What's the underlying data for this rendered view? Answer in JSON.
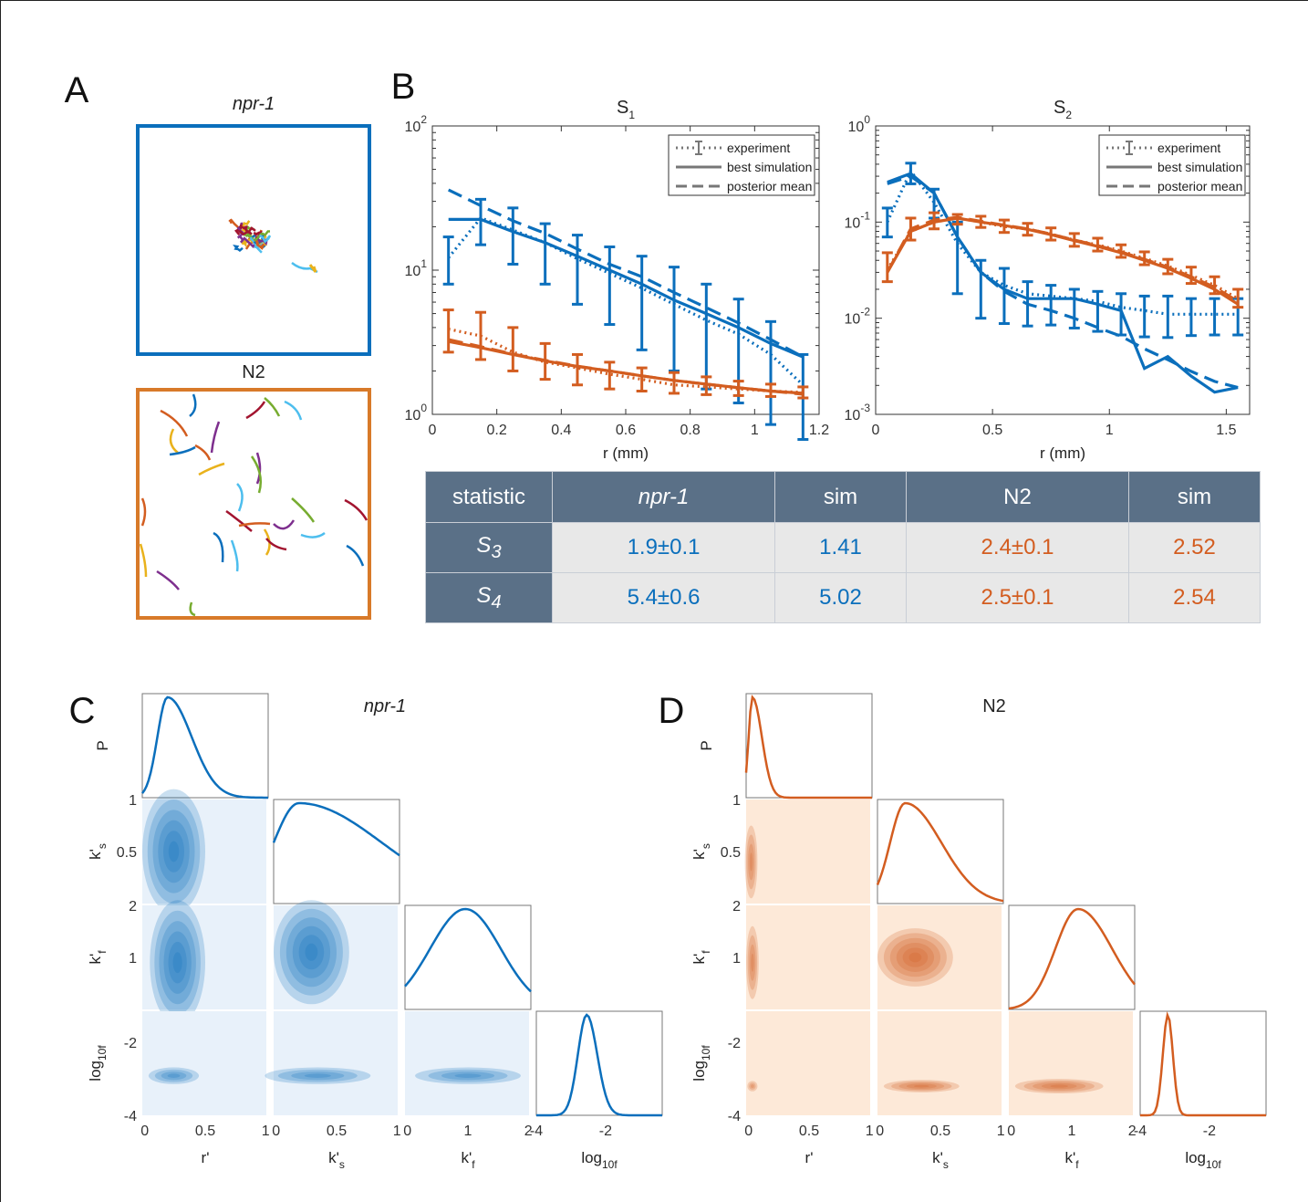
{
  "panels": {
    "A": "A",
    "B": "B",
    "C": "C",
    "D": "D"
  },
  "panel_a": {
    "top_label": "npr-1",
    "bottom_label": "N2"
  },
  "colors": {
    "blue": "#0b6fbc",
    "orange": "#d35d20",
    "light_blue": "#5ab4e5",
    "header": "#5a7087"
  },
  "legend": {
    "experiment": "experiment",
    "best": "best simulation",
    "posterior": "posterior mean"
  },
  "table": {
    "headers": [
      "statistic",
      "npr-1",
      "sim",
      "N2",
      "sim"
    ],
    "rows": [
      {
        "stat": "S",
        "sub": "3",
        "values": [
          "1.9±0.1",
          "1.41",
          "2.4±0.1",
          "2.52"
        ]
      },
      {
        "stat": "S",
        "sub": "4",
        "values": [
          "5.4±0.6",
          "5.02",
          "2.5±0.1",
          "2.54"
        ]
      }
    ]
  },
  "corner_titles": {
    "C": "npr-1",
    "D": "N2"
  },
  "corner_axes": {
    "x_labels": [
      "r'",
      "k's",
      "k'f",
      "log10ft"
    ],
    "y_labels": [
      "P",
      "k's",
      "k'f",
      "log10ft"
    ],
    "ticks_r": [
      "0",
      "0.5",
      "1"
    ],
    "ticks_ks": [
      "0",
      "0.5",
      "1"
    ],
    "ticks_kf": [
      "0",
      "1",
      "2"
    ],
    "ticks_ft": [
      "-4",
      "-2"
    ]
  },
  "chart_data": [
    {
      "type": "line",
      "title": "S1",
      "xlabel": "r (mm)",
      "ylabel": "",
      "yscale": "log",
      "xlim": [
        0,
        1.2
      ],
      "ylim": [
        1,
        100
      ],
      "xticks": [
        "0",
        "0.2",
        "0.4",
        "0.6",
        "0.8",
        "1",
        "1.2"
      ],
      "yticks": [
        "10^0",
        "10^1",
        "10^2"
      ],
      "x": [
        0.05,
        0.15,
        0.25,
        0.35,
        0.45,
        0.55,
        0.65,
        0.75,
        0.85,
        0.95,
        1.05,
        1.15
      ],
      "series": [
        {
          "color": "blue",
          "style": "experiment",
          "values": [
            12.2,
            23,
            19,
            15.5,
            12,
            9.5,
            7.5,
            5.8,
            4.5,
            3.6,
            2.6,
            1.6
          ],
          "err_lo": [
            8,
            15,
            11,
            8,
            5.8,
            4.2,
            2.8,
            2,
            1.5,
            1.2,
            0.85,
            0.67
          ],
          "err_hi": [
            17,
            31,
            27,
            21,
            17.5,
            14.5,
            12.5,
            10.5,
            8,
            6.3,
            4.4,
            2.6
          ]
        },
        {
          "color": "blue",
          "style": "best",
          "values": [
            22.5,
            22.5,
            18.5,
            15.5,
            12.5,
            10,
            8,
            6.2,
            5,
            4,
            3.1,
            2.5
          ]
        },
        {
          "color": "blue",
          "style": "posterior",
          "values": [
            36,
            28,
            22,
            18,
            14,
            11,
            9,
            7,
            5.5,
            4.3,
            3.3,
            2.5
          ]
        },
        {
          "color": "orange",
          "style": "experiment",
          "values": [
            3.9,
            3.5,
            2.7,
            2.3,
            2.1,
            1.9,
            1.75,
            1.6,
            1.55,
            1.5,
            1.45,
            1.42
          ],
          "err_lo": [
            2.7,
            2.4,
            2.0,
            1.75,
            1.6,
            1.5,
            1.45,
            1.4,
            1.37,
            1.35,
            1.33,
            1.3
          ],
          "err_hi": [
            5.3,
            5.1,
            4.0,
            3.1,
            2.6,
            2.3,
            2.1,
            1.95,
            1.82,
            1.7,
            1.62,
            1.55
          ]
        },
        {
          "color": "orange",
          "style": "best",
          "values": [
            3.2,
            2.9,
            2.6,
            2.35,
            2.15,
            2.0,
            1.85,
            1.72,
            1.62,
            1.53,
            1.45,
            1.4
          ]
        },
        {
          "color": "orange",
          "style": "posterior",
          "values": [
            3.3,
            2.95,
            2.62,
            2.37,
            2.16,
            2.0,
            1.85,
            1.72,
            1.62,
            1.53,
            1.45,
            1.38
          ]
        }
      ]
    },
    {
      "type": "line",
      "title": "S2",
      "xlabel": "r (mm)",
      "ylabel": "",
      "yscale": "log",
      "xlim": [
        0,
        1.6
      ],
      "ylim": [
        0.001,
        1
      ],
      "xticks": [
        "0",
        "0.5",
        "1",
        "1.5"
      ],
      "yticks": [
        "10^-3",
        "10^-2",
        "10^-1",
        "10^0"
      ],
      "x": [
        0.05,
        0.15,
        0.25,
        0.35,
        0.45,
        0.55,
        0.65,
        0.75,
        0.85,
        0.95,
        1.05,
        1.15,
        1.25,
        1.35,
        1.45,
        1.55
      ],
      "series": [
        {
          "color": "blue",
          "style": "experiment",
          "values": [
            0.1,
            0.34,
            0.16,
            0.06,
            0.03,
            0.022,
            0.018,
            0.017,
            0.016,
            0.015,
            0.013,
            0.012,
            0.011,
            0.011,
            0.011,
            0.011
          ],
          "err_lo": [
            0.07,
            0.25,
            0.11,
            0.018,
            0.01,
            0.0088,
            0.0083,
            0.0085,
            0.0079,
            0.0073,
            0.0067,
            0.0064,
            0.0063,
            0.0066,
            0.0067,
            0.0067
          ],
          "err_hi": [
            0.14,
            0.41,
            0.22,
            0.1,
            0.04,
            0.033,
            0.024,
            0.022,
            0.02,
            0.019,
            0.018,
            0.017,
            0.017,
            0.016,
            0.016,
            0.016
          ]
        },
        {
          "color": "blue",
          "style": "best",
          "values": [
            0.26,
            0.32,
            0.2,
            0.07,
            0.03,
            0.02,
            0.016,
            0.016,
            0.016,
            0.014,
            0.012,
            0.003,
            0.004,
            0.0025,
            0.0017,
            0.0019
          ]
        },
        {
          "color": "blue",
          "style": "posterior",
          "values": [
            0.25,
            0.3,
            0.2,
            0.07,
            0.03,
            0.019,
            0.014,
            0.012,
            0.01,
            0.008,
            0.0065,
            0.0048,
            0.0037,
            0.0028,
            0.0022,
            0.0019
          ]
        },
        {
          "color": "orange",
          "style": "experiment",
          "values": [
            0.032,
            0.08,
            0.1,
            0.11,
            0.1,
            0.09,
            0.085,
            0.075,
            0.065,
            0.058,
            0.05,
            0.042,
            0.035,
            0.028,
            0.022,
            0.016
          ],
          "err_lo": [
            0.024,
            0.065,
            0.085,
            0.095,
            0.088,
            0.078,
            0.073,
            0.065,
            0.056,
            0.05,
            0.043,
            0.036,
            0.029,
            0.023,
            0.018,
            0.013
          ],
          "err_hi": [
            0.048,
            0.11,
            0.125,
            0.12,
            0.115,
            0.105,
            0.097,
            0.087,
            0.076,
            0.068,
            0.058,
            0.049,
            0.041,
            0.034,
            0.027,
            0.02
          ]
        },
        {
          "color": "orange",
          "style": "best",
          "values": [
            0.03,
            0.08,
            0.1,
            0.11,
            0.1,
            0.092,
            0.084,
            0.074,
            0.064,
            0.056,
            0.048,
            0.04,
            0.033,
            0.026,
            0.02,
            0.014
          ]
        },
        {
          "color": "orange",
          "style": "posterior",
          "values": [
            0.03,
            0.085,
            0.105,
            0.112,
            0.102,
            0.093,
            0.085,
            0.075,
            0.065,
            0.057,
            0.049,
            0.041,
            0.034,
            0.027,
            0.021,
            0.015
          ]
        }
      ]
    }
  ]
}
